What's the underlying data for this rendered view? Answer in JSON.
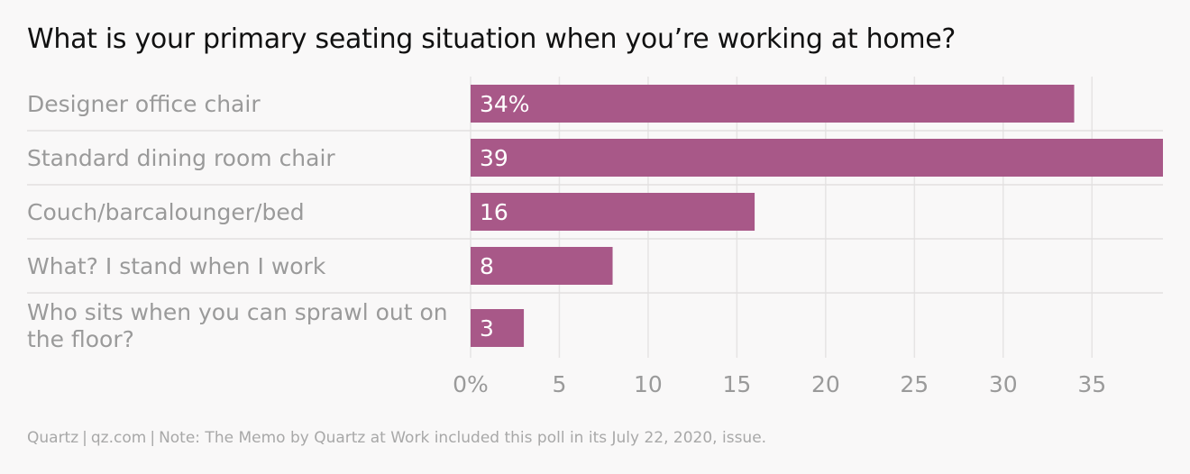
{
  "title": "What is your primary seating situation when you’re working at home?",
  "footer": {
    "source": "Quartz",
    "site": "qz.com",
    "note": "Note: The Memo by Quartz at Work included this poll in its July 22, 2020, issue."
  },
  "colors": {
    "bar": "#a85888",
    "grid": "#e6e4e4",
    "row_divider": "#e2e0e0",
    "category_text": "#9a9a9a",
    "tick_text": "#9a9a9a",
    "bar_label": "#ffffff",
    "background": "#f9f8f8"
  },
  "chart_data": {
    "type": "bar",
    "orientation": "horizontal",
    "categories": [
      "Designer office chair",
      "Standard dining room chair",
      "Couch/barcalounger/bed",
      "What? I stand when I work",
      "Who sits when you can sprawl out on the floor?"
    ],
    "values": [
      34,
      39,
      16,
      8,
      3
    ],
    "data_labels": [
      "34%",
      "39",
      "16",
      "8",
      "3"
    ],
    "xlim": [
      0,
      39
    ],
    "xticks": [
      0,
      5,
      10,
      15,
      20,
      25,
      30,
      35
    ],
    "xtick_labels": [
      "0%",
      "5",
      "10",
      "15",
      "20",
      "25",
      "30",
      "35"
    ],
    "grid": true
  }
}
